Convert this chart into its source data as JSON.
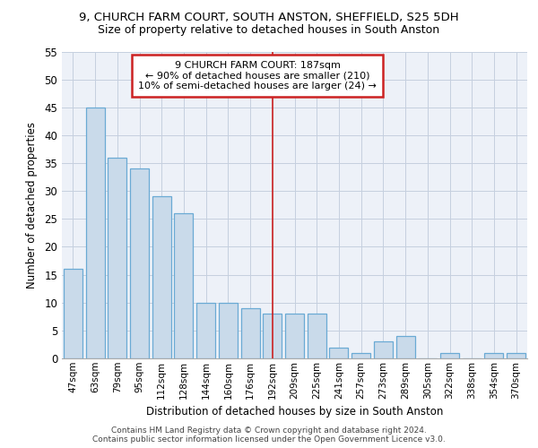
{
  "title1": "9, CHURCH FARM COURT, SOUTH ANSTON, SHEFFIELD, S25 5DH",
  "title2": "Size of property relative to detached houses in South Anston",
  "xlabel": "Distribution of detached houses by size in South Anston",
  "ylabel": "Number of detached properties",
  "categories": [
    "47sqm",
    "63sqm",
    "79sqm",
    "95sqm",
    "112sqm",
    "128sqm",
    "144sqm",
    "160sqm",
    "176sqm",
    "192sqm",
    "209sqm",
    "225sqm",
    "241sqm",
    "257sqm",
    "273sqm",
    "289sqm",
    "305sqm",
    "322sqm",
    "338sqm",
    "354sqm",
    "370sqm"
  ],
  "values": [
    16,
    45,
    36,
    34,
    29,
    26,
    10,
    10,
    9,
    8,
    8,
    8,
    2,
    1,
    3,
    4,
    0,
    1,
    0,
    1,
    1
  ],
  "bar_color": "#c9daea",
  "bar_edge_color": "#6aaad4",
  "vertical_line_x": 9.5,
  "vertical_line_color": "#cc2222",
  "annotation_text_line1": "9 CHURCH FARM COURT: 187sqm",
  "annotation_text_line2": "← 90% of detached houses are smaller (210)",
  "annotation_text_line3": "10% of semi-detached houses are larger (24) →",
  "annotation_box_edgecolor": "#cc2222",
  "grid_color": "#c5cfdf",
  "bg_color": "#edf1f8",
  "ylim_max": 55,
  "yticks": [
    0,
    5,
    10,
    15,
    20,
    25,
    30,
    35,
    40,
    45,
    50,
    55
  ],
  "footer1": "Contains HM Land Registry data © Crown copyright and database right 2024.",
  "footer2": "Contains public sector information licensed under the Open Government Licence v3.0."
}
